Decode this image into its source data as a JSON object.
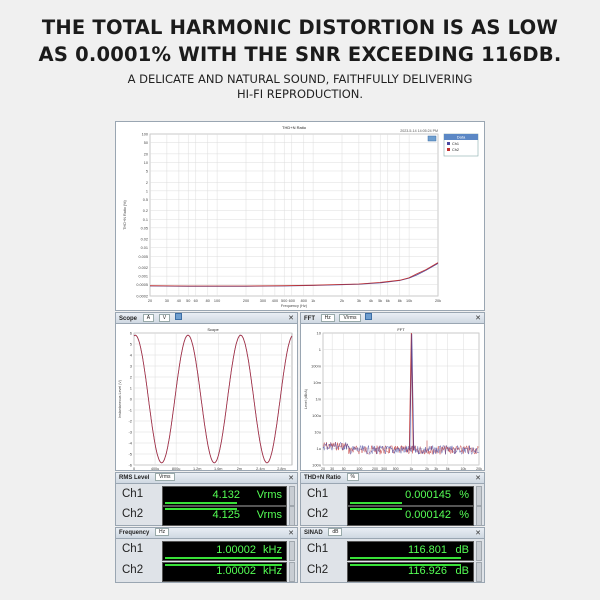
{
  "headline": {
    "line1": "THE TOTAL HARMONIC DISTORTION IS AS LOW",
    "line2": "AS 0.0001% WITH THE SNR EXCEEDING 116DB."
  },
  "subline": {
    "line1": "A DELICATE AND NATURAL SOUND, FAITHFULLY DELIVERING",
    "line2": "HI-FI REPRODUCTION."
  },
  "thd_graph": {
    "title": "THD+N Ratio",
    "timestamp": "2023-5-14 14:05:24 PM",
    "ylabel": "THD+N Ratio (%)",
    "xlabel": "Frequency (Hz)",
    "y_ticks": [
      "100",
      "50",
      "20",
      "10",
      "5",
      "2",
      "1",
      "0.5",
      "0.2",
      "0.1",
      "0.05",
      "0.02",
      "0.01",
      "0.005",
      "0.002",
      "0.001",
      "0.0005",
      "0.0002"
    ],
    "x_ticks": [
      "20",
      "30",
      "40",
      "50",
      "60",
      "80",
      "100",
      "200",
      "300",
      "400",
      "500",
      "600",
      "800",
      "1k",
      "2k",
      "3k",
      "4k",
      "5k",
      "6k",
      "8k",
      "10k",
      "20k"
    ],
    "legend_title": "Data",
    "legend": [
      "Ch1",
      "Ch2"
    ],
    "colors": {
      "ch1": "#4a4aa0",
      "ch2": "#c03030"
    },
    "chart_data": {
      "type": "line",
      "title": "THD+N Ratio",
      "xlabel": "Frequency (Hz)",
      "ylabel": "THD+N Ratio (%)",
      "x_scale": "log",
      "y_scale": "log",
      "xlim": [
        20,
        20000
      ],
      "ylim": [
        0.0002,
        100
      ],
      "series": [
        {
          "name": "Ch1",
          "x": [
            20,
            50,
            100,
            200,
            500,
            1000,
            2000,
            3000,
            5000,
            8000,
            10000,
            12000,
            15000,
            20000
          ],
          "values": [
            0.00045,
            0.00044,
            0.00044,
            0.00044,
            0.00045,
            0.00047,
            0.0005,
            0.00052,
            0.00058,
            0.0007,
            0.00085,
            0.0011,
            0.0016,
            0.0028
          ]
        },
        {
          "name": "Ch2",
          "x": [
            20,
            50,
            100,
            200,
            500,
            1000,
            2000,
            3000,
            5000,
            8000,
            10000,
            12000,
            15000,
            20000
          ],
          "values": [
            0.00046,
            0.00045,
            0.00045,
            0.00045,
            0.00046,
            0.00048,
            0.00051,
            0.00053,
            0.0006,
            0.00072,
            0.00088,
            0.0012,
            0.0017,
            0.003
          ]
        }
      ]
    }
  },
  "scope": {
    "panel_title": "Scope",
    "graph_title": "Scope",
    "ylabel": "Instantaneous Level (V)",
    "xlabel": "Time (s)",
    "y_ticks": [
      "6",
      "5",
      "4",
      "3",
      "2",
      "1",
      "0",
      "-1",
      "-2",
      "-3",
      "-4",
      "-5",
      "-6"
    ],
    "x_ticks": [
      "0",
      "400u",
      "800u",
      "1.2m",
      "1.6m",
      "2m",
      "2.4m",
      "2.8m"
    ],
    "chart_data": {
      "type": "line",
      "title": "Scope",
      "xlabel": "Time (s)",
      "ylabel": "Instantaneous Level (V)",
      "ylim": [
        -6,
        6
      ],
      "xlim": [
        0,
        0.003
      ],
      "series": [
        {
          "name": "Ch1",
          "function": "sine",
          "amplitude": 5.8,
          "frequency_hz": 1000
        },
        {
          "name": "Ch2",
          "function": "sine",
          "amplitude": 5.8,
          "frequency_hz": 1000
        }
      ]
    }
  },
  "fft": {
    "panel_title": "FFT",
    "graph_title": "FFT",
    "ylabel": "Level (dBrA)",
    "xlabel": "Frequency (Hz)",
    "y_ticks": [
      "10",
      "1",
      "100m",
      "10m",
      "1m",
      "100u",
      "10u",
      "1u",
      "100n"
    ],
    "x_ticks": [
      "20",
      "30",
      "50",
      "100",
      "200",
      "300",
      "500",
      "1k",
      "2k",
      "3k",
      "5k",
      "10k",
      "20k"
    ],
    "chart_data": {
      "type": "line",
      "title": "FFT",
      "xlabel": "Frequency (Hz)",
      "x_scale": "log",
      "xlim": [
        20,
        20000
      ],
      "peak": {
        "x": 1000,
        "y_label": "10"
      },
      "noise_floor_label": "1u"
    }
  },
  "meters": {
    "rms": {
      "title": "RMS Level",
      "selector": "Vrms",
      "unit": "Vrms",
      "ch1_label": "Ch1",
      "ch2_label": "Ch2",
      "ch1_value": "4.132",
      "ch2_value": "4.125",
      "ch1_fill": 0.62,
      "ch2_fill": 0.62
    },
    "thdn": {
      "title": "THD+N Ratio",
      "selector": "%",
      "unit": "%",
      "ch1_label": "Ch1",
      "ch2_label": "Ch2",
      "ch1_value": "0.000145",
      "ch2_value": "0.000142",
      "ch1_fill": 0.45,
      "ch2_fill": 0.45
    },
    "freq": {
      "title": "Frequency",
      "selector": "Hz",
      "unit": "kHz",
      "ch1_label": "Ch1",
      "ch2_label": "Ch2",
      "ch1_value": "1.00002",
      "ch2_value": "1.00002",
      "ch1_fill": 0.98,
      "ch2_fill": 0.98
    },
    "sinad": {
      "title": "SINAD",
      "selector": "dB",
      "unit": "dB",
      "ch1_label": "Ch1",
      "ch2_label": "Ch2",
      "ch1_value": "116.801",
      "ch2_value": "116.926",
      "ch1_fill": 0.92,
      "ch2_fill": 0.92
    }
  },
  "toolbar": {
    "scope_sel1": "A",
    "scope_sel2": "V",
    "fft_sel1": "Hz",
    "fft_sel2": "V/rms"
  }
}
